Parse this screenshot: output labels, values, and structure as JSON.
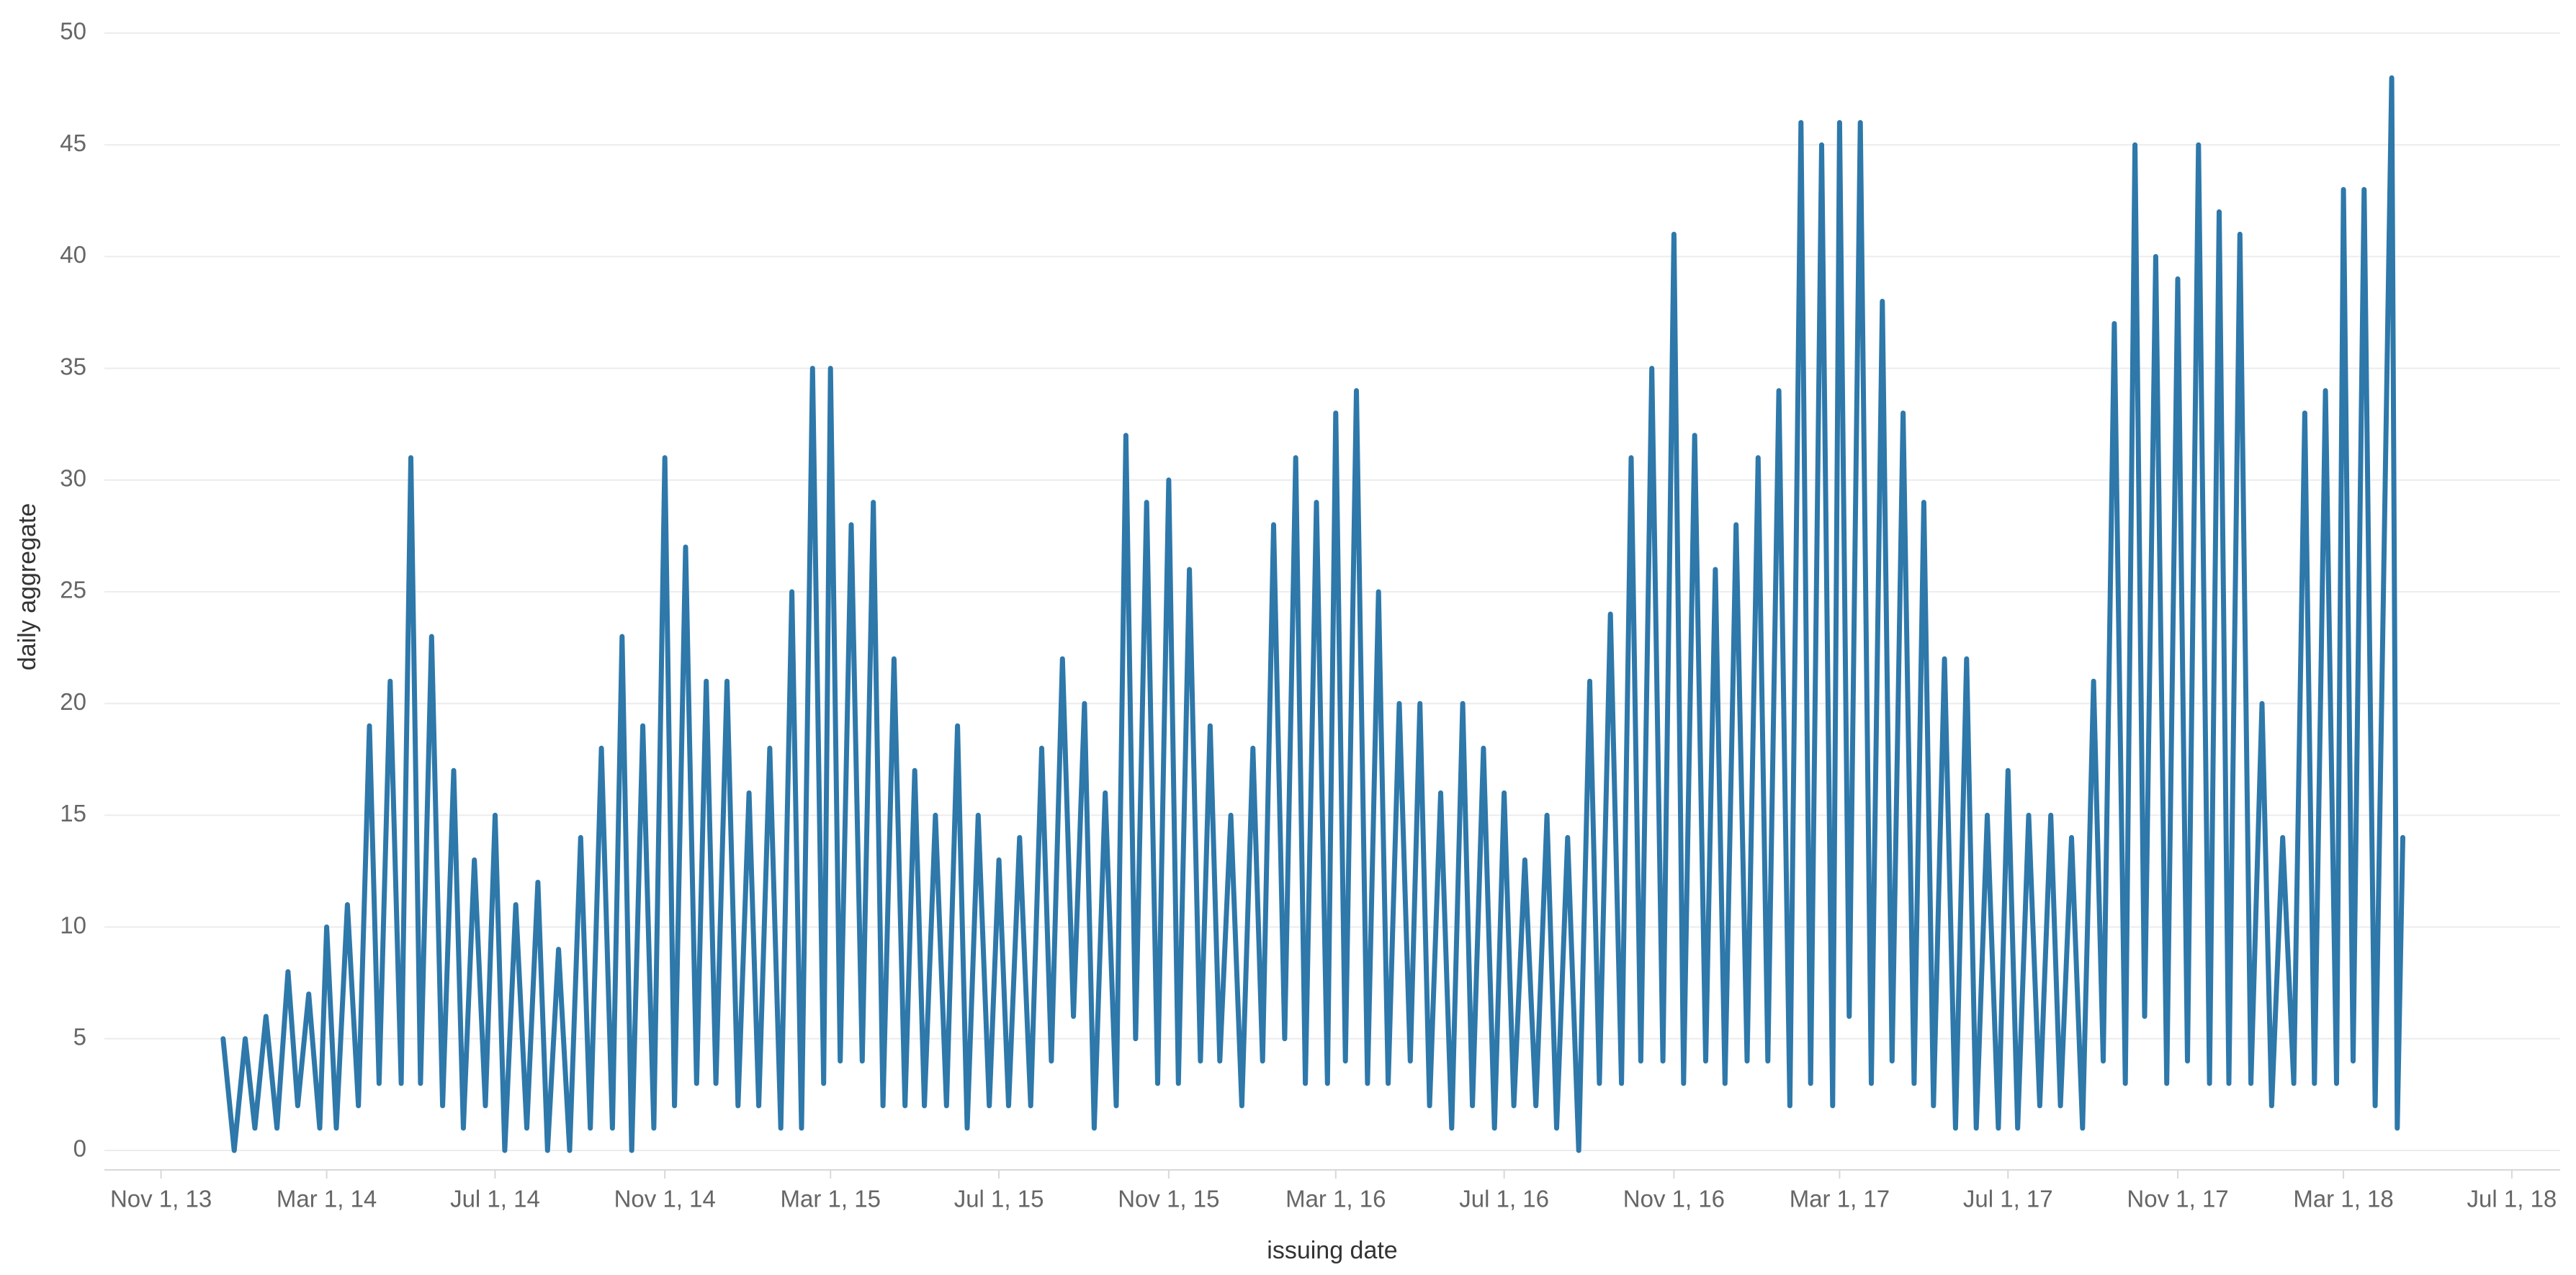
{
  "chart_data": {
    "type": "line",
    "xlabel": "issuing date",
    "ylabel": "daily aggregate",
    "color": "#2e78aa",
    "grid": true,
    "ylim": [
      0,
      50
    ],
    "yticks": [
      0,
      5,
      10,
      15,
      20,
      25,
      30,
      35,
      40,
      45,
      50
    ],
    "xlim": [
      "2013-09-21",
      "2018-08-05"
    ],
    "xticks": [
      {
        "value": "2013-11-01",
        "label": "Nov 1, 13"
      },
      {
        "value": "2014-03-01",
        "label": "Mar 1, 14"
      },
      {
        "value": "2014-07-01",
        "label": "Jul 1, 14"
      },
      {
        "value": "2014-11-01",
        "label": "Nov 1, 14"
      },
      {
        "value": "2015-03-01",
        "label": "Mar 1, 15"
      },
      {
        "value": "2015-07-01",
        "label": "Jul 1, 15"
      },
      {
        "value": "2015-11-01",
        "label": "Nov 1, 15"
      },
      {
        "value": "2016-03-01",
        "label": "Mar 1, 16"
      },
      {
        "value": "2016-07-01",
        "label": "Jul 1, 16"
      },
      {
        "value": "2016-11-01",
        "label": "Nov 1, 16"
      },
      {
        "value": "2017-03-01",
        "label": "Mar 1, 17"
      },
      {
        "value": "2017-07-01",
        "label": "Jul 1, 17"
      },
      {
        "value": "2017-11-01",
        "label": "Nov 1, 17"
      },
      {
        "value": "2018-03-01",
        "label": "Mar 1, 18"
      },
      {
        "value": "2018-07-01",
        "label": "Jul 1, 18"
      }
    ],
    "x": [
      "2013-12-16",
      "2013-12-24",
      "2014-01-01",
      "2014-01-08",
      "2014-01-16",
      "2014-01-24",
      "2014-02-01",
      "2014-02-08",
      "2014-02-16",
      "2014-02-24",
      "2014-03-01",
      "2014-03-08",
      "2014-03-16",
      "2014-03-24",
      "2014-04-01",
      "2014-04-08",
      "2014-04-16",
      "2014-04-24",
      "2014-05-01",
      "2014-05-08",
      "2014-05-16",
      "2014-05-24",
      "2014-06-01",
      "2014-06-08",
      "2014-06-16",
      "2014-06-24",
      "2014-07-01",
      "2014-07-08",
      "2014-07-16",
      "2014-07-24",
      "2014-08-01",
      "2014-08-08",
      "2014-08-16",
      "2014-08-24",
      "2014-09-01",
      "2014-09-08",
      "2014-09-16",
      "2014-09-24",
      "2014-10-01",
      "2014-10-08",
      "2014-10-16",
      "2014-10-24",
      "2014-11-01",
      "2014-11-08",
      "2014-11-16",
      "2014-11-24",
      "2014-12-01",
      "2014-12-08",
      "2014-12-16",
      "2014-12-24",
      "2015-01-01",
      "2015-01-08",
      "2015-01-16",
      "2015-01-24",
      "2015-02-01",
      "2015-02-08",
      "2015-02-16",
      "2015-02-24",
      "2015-03-01",
      "2015-03-08",
      "2015-03-16",
      "2015-03-24",
      "2015-04-01",
      "2015-04-08",
      "2015-04-16",
      "2015-04-24",
      "2015-05-01",
      "2015-05-08",
      "2015-05-16",
      "2015-05-24",
      "2015-06-01",
      "2015-06-08",
      "2015-06-16",
      "2015-06-24",
      "2015-07-01",
      "2015-07-08",
      "2015-07-16",
      "2015-07-24",
      "2015-08-01",
      "2015-08-08",
      "2015-08-16",
      "2015-08-24",
      "2015-09-01",
      "2015-09-08",
      "2015-09-16",
      "2015-09-24",
      "2015-10-01",
      "2015-10-08",
      "2015-10-16",
      "2015-10-24",
      "2015-11-01",
      "2015-11-08",
      "2015-11-16",
      "2015-11-24",
      "2015-12-01",
      "2015-12-08",
      "2015-12-16",
      "2015-12-24",
      "2016-01-01",
      "2016-01-08",
      "2016-01-16",
      "2016-01-24",
      "2016-02-01",
      "2016-02-08",
      "2016-02-16",
      "2016-02-24",
      "2016-03-01",
      "2016-03-08",
      "2016-03-16",
      "2016-03-24",
      "2016-04-01",
      "2016-04-08",
      "2016-04-16",
      "2016-04-24",
      "2016-05-01",
      "2016-05-08",
      "2016-05-16",
      "2016-05-24",
      "2016-06-01",
      "2016-06-08",
      "2016-06-16",
      "2016-06-24",
      "2016-07-01",
      "2016-07-08",
      "2016-07-16",
      "2016-07-24",
      "2016-08-01",
      "2016-08-08",
      "2016-08-16",
      "2016-08-24",
      "2016-09-01",
      "2016-09-08",
      "2016-09-16",
      "2016-09-24",
      "2016-10-01",
      "2016-10-08",
      "2016-10-16",
      "2016-10-24",
      "2016-11-01",
      "2016-11-08",
      "2016-11-16",
      "2016-11-24",
      "2016-12-01",
      "2016-12-08",
      "2016-12-16",
      "2016-12-24",
      "2017-01-01",
      "2017-01-08",
      "2017-01-16",
      "2017-01-24",
      "2017-02-01",
      "2017-02-08",
      "2017-02-16",
      "2017-02-24",
      "2017-03-01",
      "2017-03-08",
      "2017-03-16",
      "2017-03-24",
      "2017-04-01",
      "2017-04-08",
      "2017-04-16",
      "2017-04-24",
      "2017-05-01",
      "2017-05-08",
      "2017-05-16",
      "2017-05-24",
      "2017-06-01",
      "2017-06-08",
      "2017-06-16",
      "2017-06-24",
      "2017-07-01",
      "2017-07-08",
      "2017-07-16",
      "2017-07-24",
      "2017-08-01",
      "2017-08-08",
      "2017-08-16",
      "2017-08-24",
      "2017-09-01",
      "2017-09-08",
      "2017-09-16",
      "2017-09-24",
      "2017-10-01",
      "2017-10-08",
      "2017-10-16",
      "2017-10-24",
      "2017-11-01",
      "2017-11-08",
      "2017-11-16",
      "2017-11-24",
      "2017-12-01",
      "2017-12-08",
      "2017-12-16",
      "2017-12-24",
      "2018-01-01",
      "2018-01-08",
      "2018-01-16",
      "2018-01-24",
      "2018-02-01",
      "2018-02-08",
      "2018-02-16",
      "2018-02-24",
      "2018-03-01",
      "2018-03-08",
      "2018-03-16",
      "2018-03-24",
      "2018-04-05",
      "2018-04-09",
      "2018-04-13"
    ],
    "values": [
      5,
      0,
      5,
      1,
      6,
      1,
      8,
      2,
      7,
      1,
      10,
      1,
      11,
      2,
      19,
      3,
      21,
      3,
      31,
      3,
      23,
      2,
      17,
      1,
      13,
      2,
      15,
      0,
      11,
      1,
      12,
      0,
      9,
      0,
      14,
      1,
      18,
      1,
      23,
      0,
      19,
      1,
      31,
      2,
      27,
      3,
      21,
      3,
      21,
      2,
      16,
      2,
      18,
      1,
      25,
      1,
      35,
      3,
      35,
      4,
      28,
      4,
      29,
      2,
      22,
      2,
      17,
      2,
      15,
      2,
      19,
      1,
      15,
      2,
      13,
      2,
      14,
      2,
      18,
      4,
      22,
      6,
      20,
      1,
      16,
      2,
      32,
      5,
      29,
      3,
      30,
      3,
      26,
      4,
      19,
      4,
      15,
      2,
      18,
      4,
      28,
      5,
      31,
      3,
      29,
      3,
      33,
      4,
      34,
      3,
      25,
      3,
      20,
      4,
      20,
      2,
      16,
      1,
      20,
      2,
      18,
      1,
      16,
      2,
      13,
      2,
      15,
      1,
      14,
      0,
      21,
      3,
      24,
      3,
      31,
      4,
      35,
      4,
      41,
      3,
      32,
      4,
      26,
      3,
      28,
      4,
      31,
      4,
      34,
      2,
      46,
      3,
      45,
      2,
      46,
      6,
      46,
      3,
      38,
      4,
      33,
      3,
      29,
      2,
      22,
      1,
      22,
      1,
      15,
      1,
      17,
      1,
      15,
      2,
      15,
      2,
      14,
      1,
      21,
      4,
      37,
      3,
      45,
      6,
      40,
      3,
      39,
      4,
      45,
      3,
      42,
      3,
      41,
      3,
      20,
      2,
      14,
      3,
      33,
      3,
      34,
      3,
      43,
      4,
      43,
      2,
      48,
      1,
      14
    ]
  }
}
